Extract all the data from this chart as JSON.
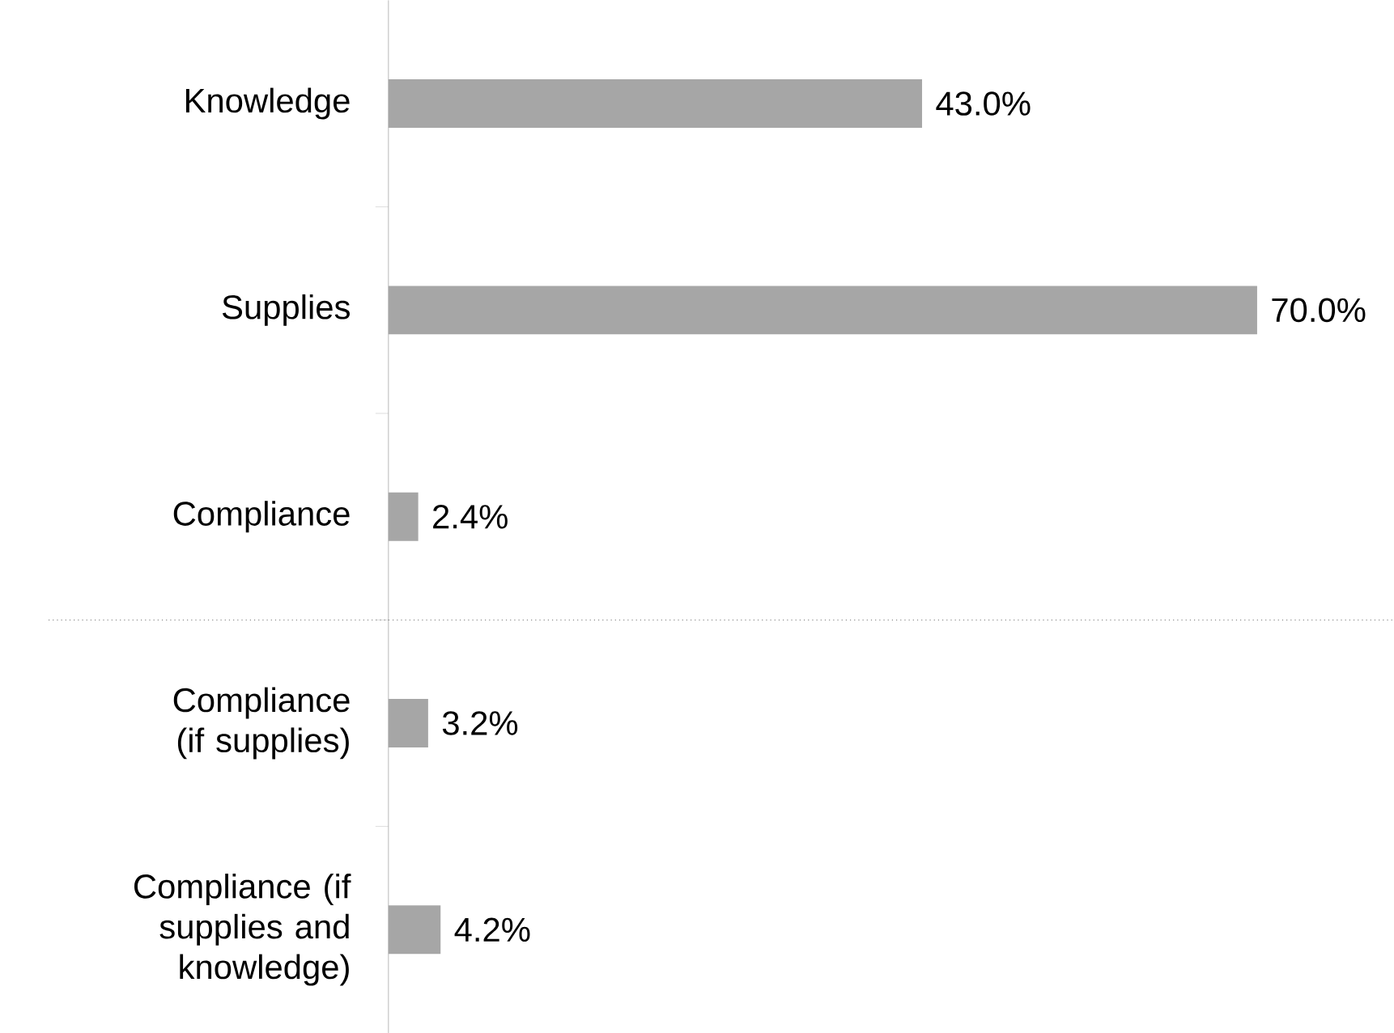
{
  "chart_data": {
    "type": "bar",
    "orientation": "horizontal",
    "categories": [
      "Knowledge",
      "Supplies",
      "Compliance",
      "Compliance (if supplies)",
      "Compliance (if supplies and knowledge)"
    ],
    "values": [
      43.0,
      70.0,
      2.4,
      3.2,
      4.2
    ],
    "value_labels": [
      "43.0%",
      "70.0%",
      "2.4%",
      "3.2%",
      "4.2%"
    ],
    "color": "#a6a6a6"
  }
}
